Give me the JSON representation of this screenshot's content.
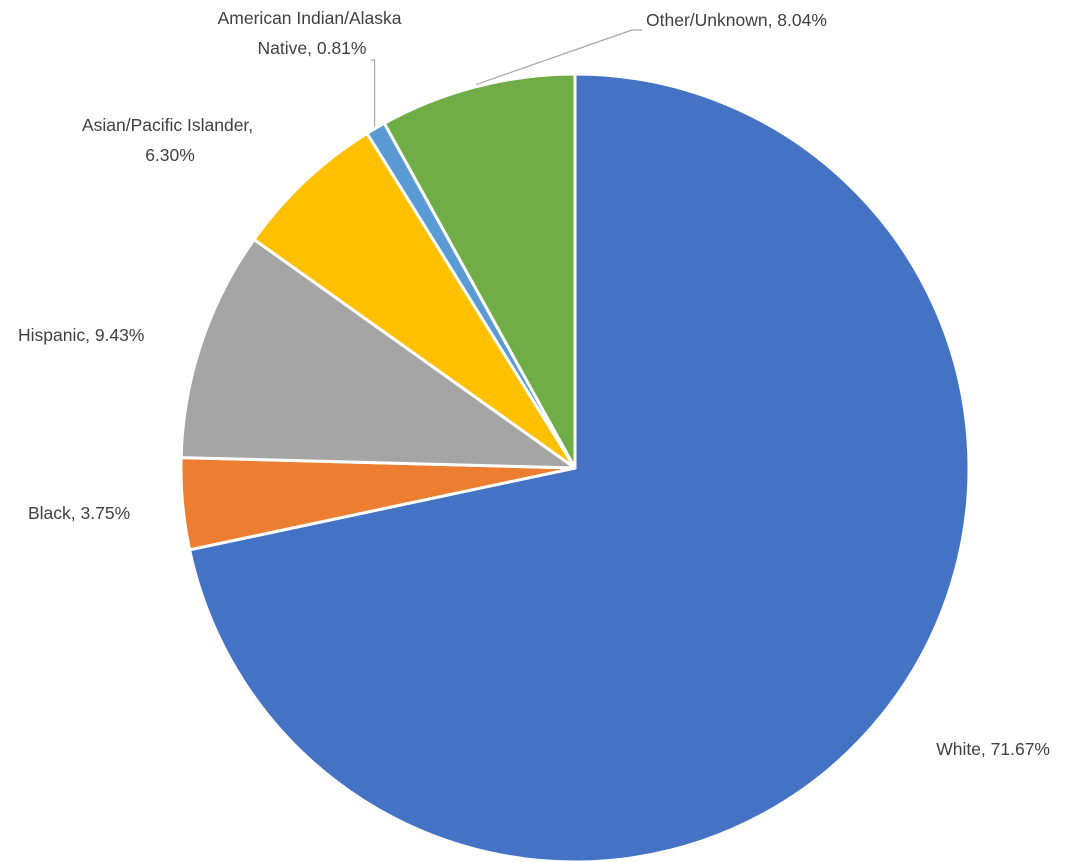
{
  "chart_data": {
    "type": "pie",
    "title": "",
    "start_angle_deg": 0,
    "direction": "clockwise",
    "value_unit": "%",
    "slices": [
      {
        "category": "White",
        "value": 71.67,
        "label": "White, 71.67%",
        "color": "#4472C4"
      },
      {
        "category": "Black",
        "value": 3.75,
        "label": "Black, 3.75%",
        "color": "#ED7D31"
      },
      {
        "category": "Hispanic",
        "value": 9.43,
        "label": "Hispanic, 9.43%",
        "color": "#A5A5A5"
      },
      {
        "category": "Asian/Pacific Islander",
        "value": 6.3,
        "label": "Asian/Pacific Islander, 6.30%",
        "color": "#FFC000"
      },
      {
        "category": "American Indian/Alaska Native",
        "value": 0.81,
        "label": "American Indian/Alaska Native, 0.81%",
        "color": "#5B9BD5"
      },
      {
        "category": "Other/Unknown",
        "value": 8.04,
        "label": "Other/Unknown, 8.04%",
        "color": "#70AD47"
      }
    ],
    "legend": "none",
    "leader_lines": [
      "American Indian/Alaska Native",
      "Other/Unknown"
    ]
  }
}
